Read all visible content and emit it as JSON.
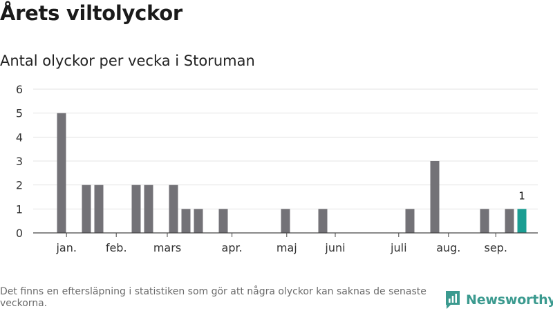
{
  "title": "Årets viltolyckor",
  "subtitle": "Antal olyckor per vecka i Storuman",
  "footnote": "Det finns en eftersläpning i statistiken som gör att några olyckor kan saknas de senaste veckorna.",
  "logo": {
    "text": "Newsworthy",
    "icon": "newsworthy-logo-icon"
  },
  "colors": {
    "bar": "#737277",
    "highlight": "#1b9e93",
    "grid": "#e3e3e3",
    "axis": "#444444",
    "logo": "#3b9a8f"
  },
  "chart_data": {
    "type": "bar",
    "title": "Antal olyckor per vecka i Storuman",
    "xlabel": "",
    "ylabel": "",
    "ylim": [
      0,
      6
    ],
    "yticks": [
      0,
      1,
      2,
      3,
      4,
      5,
      6
    ],
    "grid": true,
    "weeks": [
      1,
      2,
      3,
      4,
      5,
      6,
      7,
      8,
      9,
      10,
      11,
      12,
      13,
      14,
      15,
      16,
      17,
      18,
      19,
      20,
      21,
      22,
      23,
      24,
      25,
      26,
      27,
      28,
      29,
      30,
      31,
      32,
      33,
      34,
      35,
      36,
      37,
      38
    ],
    "values": [
      5,
      0,
      2,
      2,
      0,
      0,
      2,
      2,
      0,
      2,
      1,
      1,
      0,
      1,
      0,
      0,
      0,
      0,
      1,
      0,
      0,
      1,
      0,
      0,
      0,
      0,
      0,
      0,
      1,
      0,
      3,
      0,
      0,
      0,
      1,
      0,
      1,
      1
    ],
    "highlight_week": 38,
    "highlight_label": "1",
    "month_labels": [
      {
        "label": "jan.",
        "week": 1.4
      },
      {
        "label": "feb.",
        "week": 5.4
      },
      {
        "label": "mars",
        "week": 9.5
      },
      {
        "label": "apr.",
        "week": 14.7
      },
      {
        "label": "maj",
        "week": 19.1
      },
      {
        "label": "juni",
        "week": 23.0
      },
      {
        "label": "juli",
        "week": 28.1
      },
      {
        "label": "aug.",
        "week": 32.1
      },
      {
        "label": "sep.",
        "week": 35.9
      }
    ]
  }
}
